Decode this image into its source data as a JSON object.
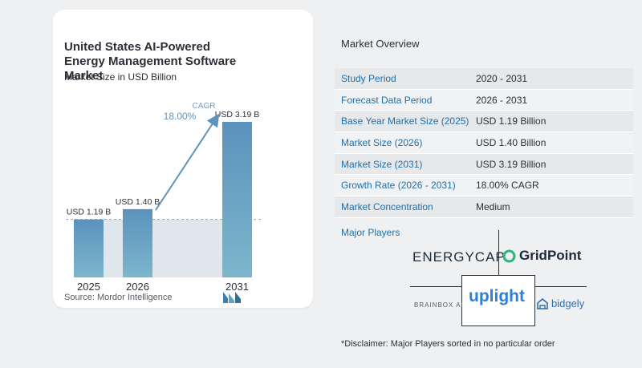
{
  "chart_card": {
    "title": "United States AI-Powered Energy Management Software Market",
    "subtitle": "Market Size in USD Billion",
    "source": "Source:  Mordor Intelligence",
    "cagr_label": "CAGR",
    "cagr_value": "18.00%"
  },
  "chart_data": {
    "type": "bar",
    "categories": [
      "2025",
      "2026",
      "2031"
    ],
    "values": [
      1.19,
      1.4,
      3.19
    ],
    "data_labels": [
      "USD 1.19 B",
      "USD 1.40 B",
      "USD 3.19 B"
    ],
    "title": "United States AI-Powered Energy Management Software Market",
    "ylabel": "Market Size in USD Billion",
    "ylim": [
      0,
      3.19
    ],
    "annotation": "CAGR 18.00%",
    "colors": {
      "bar_light": "#5d93be",
      "bar_dark": "#7fb3cc",
      "shade": "#dfe6ec"
    }
  },
  "overview": {
    "title": "Market Overview",
    "rows": [
      {
        "label": "Study Period",
        "value": "2020 - 2031"
      },
      {
        "label": "Forecast Data Period",
        "value": "2026 - 2031"
      },
      {
        "label": "Base Year Market Size (2025)",
        "value": "USD 1.19 Billion"
      },
      {
        "label": "Market Size (2026)",
        "value": "USD 1.40 Billion"
      },
      {
        "label": "Market Size (2031)",
        "value": "USD 3.19 Billion"
      },
      {
        "label": "Growth Rate (2026 - 2031)",
        "value": "18.00% CAGR"
      },
      {
        "label": "Market Concentration",
        "value": "Medium"
      }
    ]
  },
  "players": {
    "title": "Major Players",
    "logos": [
      "ENERGYCAP",
      "GridPoint",
      "BRAINBOX AI",
      "uplight",
      "bidgely"
    ],
    "disclaimer": "*Disclaimer: Major Players sorted in no particular order"
  },
  "accent": "#1f6fa8"
}
